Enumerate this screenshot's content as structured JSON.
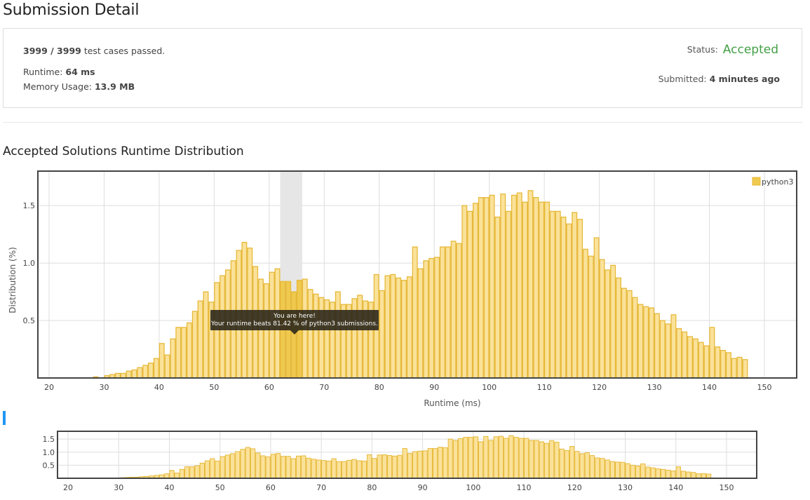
{
  "page": {
    "title": "Submission Detail"
  },
  "summary": {
    "passed_count": "3999 / 3999",
    "passed_suffix": " test cases passed.",
    "runtime_label": "Runtime: ",
    "runtime_value": "64 ms",
    "memory_label": "Memory Usage: ",
    "memory_value": "13.9 MB",
    "status_label": "Status:",
    "status_value": "Accepted",
    "submitted_label": "Submitted: ",
    "submitted_value": "4 minutes ago"
  },
  "colors": {
    "accepted": "#43a047",
    "bar_fill": "#fbe29a",
    "bar_stroke": "#e6b93a",
    "highlight_fill": "#f0c94f",
    "highlight_band": "#e6e6e6",
    "accent_marker": "#2196f3"
  },
  "section": {
    "title": "Accepted Solutions Runtime Distribution"
  },
  "tooltip": {
    "line1": "You are here!",
    "line2": "Your runtime beats 81.42 % of python3 submissions."
  },
  "chart_data": {
    "type": "bar",
    "title": "",
    "xlabel": "Runtime (ms)",
    "ylabel": "Distribution (%)",
    "xlim": [
      20,
      150
    ],
    "ylim": [
      0,
      1.8
    ],
    "x_ticks": [
      20,
      30,
      40,
      50,
      60,
      70,
      80,
      90,
      100,
      110,
      120,
      130,
      140,
      150
    ],
    "y_ticks": [
      0.5,
      1.0,
      1.5
    ],
    "grid": true,
    "legend_position": "top-right",
    "highlight": {
      "runtime_ms": 64,
      "band": [
        62,
        66
      ]
    },
    "series": [
      {
        "name": "python3",
        "x": [
          28,
          29,
          30,
          31,
          32,
          33,
          34,
          35,
          36,
          37,
          38,
          39,
          40,
          41,
          42,
          43,
          44,
          45,
          46,
          47,
          48,
          49,
          50,
          51,
          52,
          53,
          54,
          55,
          56,
          57,
          58,
          59,
          60,
          61,
          62,
          63,
          64,
          65,
          66,
          67,
          68,
          69,
          70,
          71,
          72,
          73,
          74,
          75,
          76,
          77,
          78,
          79,
          80,
          81,
          82,
          83,
          84,
          85,
          86,
          87,
          88,
          89,
          90,
          91,
          92,
          93,
          94,
          95,
          96,
          97,
          98,
          99,
          100,
          101,
          102,
          103,
          104,
          105,
          106,
          107,
          108,
          109,
          110,
          111,
          112,
          113,
          114,
          115,
          116,
          117,
          118,
          119,
          120,
          121,
          122,
          123,
          124,
          125,
          126,
          127,
          128,
          129,
          130,
          131,
          132,
          133,
          134,
          135,
          136,
          137,
          138,
          139,
          140,
          141,
          142,
          143,
          144,
          145,
          146
        ],
        "values": [
          0.01,
          0.0,
          0.02,
          0.03,
          0.04,
          0.04,
          0.06,
          0.07,
          0.09,
          0.11,
          0.13,
          0.17,
          0.3,
          0.2,
          0.34,
          0.44,
          0.44,
          0.48,
          0.58,
          0.67,
          0.75,
          0.66,
          0.83,
          0.89,
          0.94,
          1.02,
          1.11,
          1.18,
          1.13,
          0.97,
          0.86,
          0.82,
          0.92,
          0.95,
          0.84,
          0.84,
          0.75,
          0.85,
          0.86,
          0.77,
          0.73,
          0.7,
          0.68,
          0.66,
          0.75,
          0.64,
          0.64,
          0.69,
          0.72,
          0.67,
          0.66,
          0.9,
          0.76,
          0.89,
          0.9,
          0.87,
          0.85,
          0.88,
          1.14,
          0.95,
          1.02,
          1.04,
          1.05,
          1.14,
          1.14,
          1.19,
          1.17,
          1.5,
          1.45,
          1.52,
          1.57,
          1.57,
          1.59,
          1.4,
          1.6,
          1.45,
          1.59,
          1.61,
          1.53,
          1.63,
          1.57,
          1.53,
          1.53,
          1.45,
          1.45,
          1.4,
          1.34,
          1.44,
          1.38,
          1.12,
          1.06,
          1.22,
          1.03,
          0.94,
          0.98,
          0.87,
          0.78,
          0.76,
          0.7,
          0.64,
          0.62,
          0.61,
          0.56,
          0.5,
          0.47,
          0.55,
          0.43,
          0.4,
          0.36,
          0.34,
          0.31,
          0.28,
          0.44,
          0.27,
          0.24,
          0.22,
          0.17,
          0.18,
          0.16
        ]
      }
    ]
  },
  "overview_chart": {
    "y_ticks": [
      0.5,
      1.0,
      1.5
    ],
    "x_ticks": [
      20,
      30,
      40,
      50,
      60,
      70,
      80,
      90,
      100,
      110,
      120,
      130,
      140,
      150
    ]
  }
}
